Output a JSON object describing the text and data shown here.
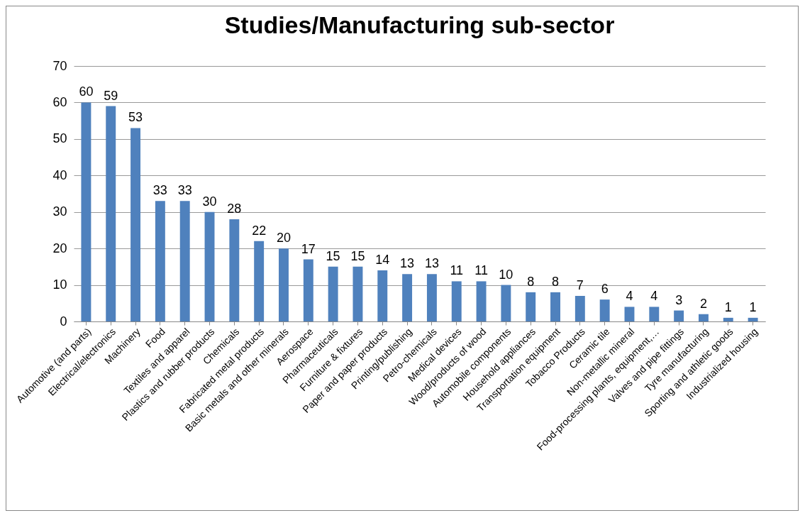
{
  "chart_data": {
    "type": "bar",
    "title": "Studies/Manufacturing sub-sector",
    "categories": [
      "Automotive (and parts)",
      "Electrical/electronics",
      "Machinery",
      "Food",
      "Textiles and apparel",
      "Plastics and rubber products",
      "Chemicals",
      "Fabricated metal products",
      "Basic metals and other minerals",
      "Aerospace",
      "Pharmaceuticals",
      "Furniture & fixtures",
      "Paper and paper products",
      "Printing/publishing",
      "Petro-chemicals",
      "Medical devices",
      "Wood/products of wood",
      "Automobile components",
      "Household appliances",
      "Transportation equipment",
      "Tobacco Products",
      "Ceramic tile",
      "Non-metallic mineral",
      "Food-processing plants, equipment,…",
      "Valves and pipe fittings",
      "Tyre manufacturing",
      "Sporting and athletic goods",
      "Industrialized housing"
    ],
    "values": [
      60,
      59,
      53,
      33,
      33,
      30,
      28,
      22,
      20,
      17,
      15,
      15,
      14,
      13,
      13,
      11,
      11,
      10,
      8,
      8,
      7,
      6,
      4,
      4,
      3,
      2,
      1,
      1
    ],
    "color": "#4f81bd",
    "ylim": [
      0,
      70
    ],
    "yticks": [
      0,
      10,
      20,
      30,
      40,
      50,
      60,
      70
    ],
    "grid": "y",
    "data_labels": true
  }
}
